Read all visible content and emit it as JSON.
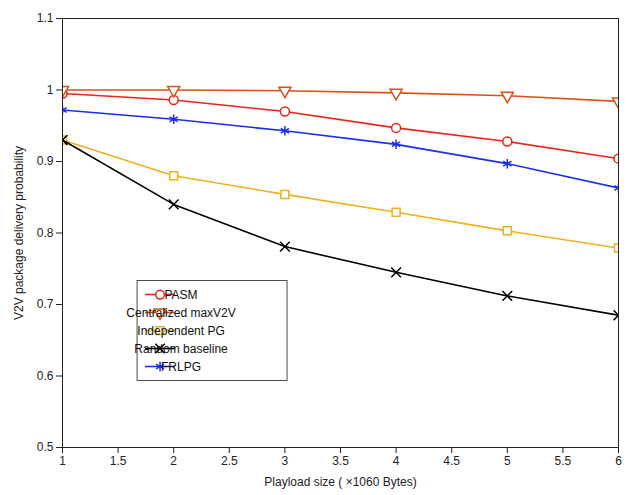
{
  "chart_data": {
    "type": "line",
    "x_label": "Playload size ( ×1060 Bytes)",
    "y_label": "V2V package delivery probability",
    "x": [
      1,
      2,
      3,
      4,
      5,
      6
    ],
    "xlim": [
      1,
      6
    ],
    "xticks": [
      1,
      1.5,
      2,
      2.5,
      3,
      3.5,
      4,
      4.5,
      5,
      5.5,
      6
    ],
    "ylim": [
      0.5,
      1.1
    ],
    "yticks": [
      0.5,
      0.6,
      0.7,
      0.8,
      0.9,
      1,
      1.1
    ],
    "grid": false,
    "legend": "lower left",
    "series": [
      {
        "name": "PASM",
        "color": "#e8261b",
        "marker": "circle",
        "values": [
          0.995,
          0.986,
          0.97,
          0.947,
          0.928,
          0.904
        ]
      },
      {
        "name": "Centralized maxV2V",
        "color": "#d95319",
        "marker": "triangle-down",
        "values": [
          1.0,
          1.0,
          0.999,
          0.996,
          0.992,
          0.984
        ]
      },
      {
        "name": "Independent PG",
        "color": "#edb120",
        "marker": "square",
        "values": [
          0.93,
          0.88,
          0.854,
          0.829,
          0.803,
          0.779
        ]
      },
      {
        "name": "Random baseline",
        "color": "#000000",
        "marker": "x",
        "values": [
          0.93,
          0.84,
          0.781,
          0.745,
          0.712,
          0.685
        ]
      },
      {
        "name": "FRLPG",
        "color": "#1a2ef0",
        "marker": "asterisk",
        "values": [
          0.972,
          0.959,
          0.943,
          0.924,
          0.897,
          0.863
        ]
      }
    ]
  }
}
